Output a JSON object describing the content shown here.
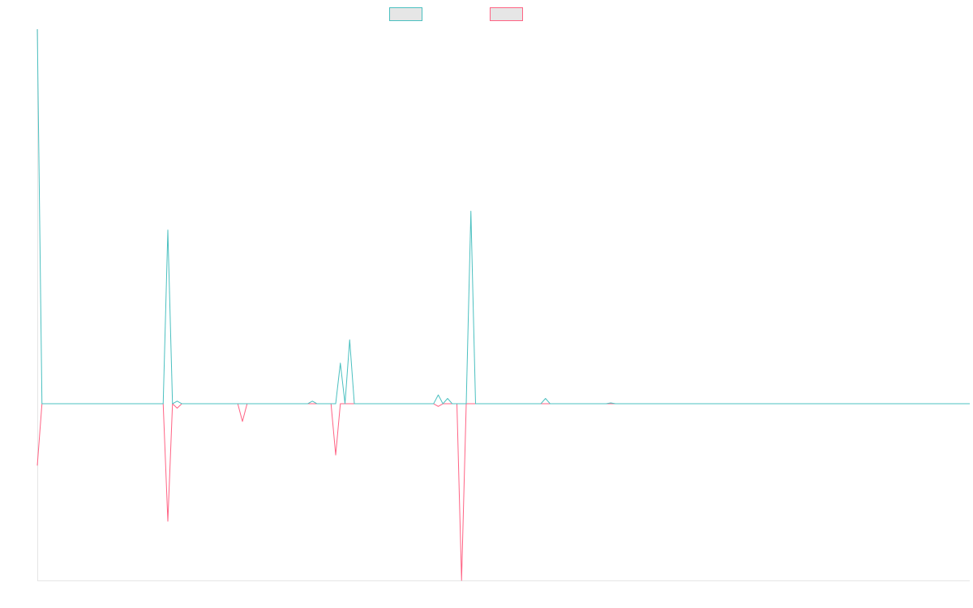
{
  "chart_data": {
    "type": "line",
    "title": "",
    "xlabel": "",
    "ylabel": "",
    "legend_position": "top-center",
    "grid": false,
    "x": [
      0,
      1,
      2,
      3,
      4,
      5,
      6,
      7,
      8,
      9,
      10,
      11,
      12,
      13,
      14,
      15,
      16,
      17,
      18,
      19,
      20,
      21,
      22,
      23,
      24,
      25,
      26,
      27,
      28,
      29,
      30,
      31,
      32,
      33,
      34,
      35,
      36,
      37,
      38,
      39,
      40,
      41,
      42,
      43,
      44,
      45,
      46,
      47,
      48,
      49,
      50,
      51,
      52,
      53,
      54,
      55,
      56,
      57,
      58,
      59,
      60,
      61,
      62,
      63,
      64,
      65,
      66,
      67,
      68,
      69,
      70,
      71,
      72,
      73,
      74,
      75,
      76,
      77,
      78,
      79,
      80,
      81,
      82,
      83,
      84,
      85,
      86,
      87,
      88,
      89,
      90,
      91,
      92,
      93,
      94,
      95,
      96,
      97,
      98,
      99,
      100,
      101,
      102,
      103,
      104,
      105,
      106,
      107,
      108,
      109,
      110,
      111,
      112,
      113,
      114,
      115,
      116,
      117,
      118,
      119,
      120,
      121,
      122,
      123,
      124,
      125,
      126,
      127,
      128,
      129,
      130,
      131,
      132,
      133,
      134,
      135,
      136,
      137,
      138,
      139,
      140,
      141,
      142,
      143,
      144,
      145,
      146,
      147,
      148,
      149,
      150,
      151,
      152,
      153,
      154,
      155,
      156,
      157,
      158,
      159,
      160,
      161,
      162,
      163,
      164,
      165,
      166,
      167,
      168,
      169,
      170,
      171,
      172,
      173,
      174,
      175,
      176,
      177,
      178,
      179,
      180,
      181,
      182,
      183,
      184,
      185,
      186,
      187,
      188,
      189,
      190,
      191,
      192,
      193,
      194,
      195,
      196,
      197,
      198,
      199,
      200
    ],
    "ylim": [
      -1000,
      2120
    ],
    "series": [
      {
        "name": "",
        "color": "#4bc0c0",
        "values": [
          2120,
          0,
          0,
          0,
          0,
          0,
          0,
          0,
          0,
          0,
          0,
          0,
          0,
          0,
          0,
          0,
          0,
          0,
          0,
          0,
          0,
          0,
          0,
          0,
          0,
          0,
          0,
          0,
          983,
          0,
          15,
          0,
          0,
          0,
          0,
          0,
          0,
          0,
          0,
          0,
          0,
          0,
          0,
          0,
          0,
          0,
          0,
          0,
          0,
          0,
          0,
          0,
          0,
          0,
          0,
          0,
          0,
          0,
          0,
          15,
          0,
          0,
          0,
          0,
          0,
          230,
          0,
          362,
          0,
          0,
          0,
          0,
          0,
          0,
          0,
          0,
          0,
          0,
          0,
          0,
          0,
          0,
          0,
          0,
          0,
          0,
          50,
          0,
          30,
          0,
          0,
          0,
          0,
          1090,
          0,
          0,
          0,
          0,
          0,
          0,
          0,
          0,
          0,
          0,
          0,
          0,
          0,
          0,
          0,
          30,
          0,
          0,
          0,
          0,
          0,
          0,
          0,
          0,
          0,
          0,
          0,
          0,
          0,
          5,
          0,
          0,
          0,
          0,
          0,
          0,
          0,
          0,
          0,
          0,
          0,
          0,
          0,
          0,
          0,
          0,
          0,
          0,
          0,
          0,
          0,
          0,
          0,
          0,
          0,
          0,
          0,
          0,
          0,
          0,
          0,
          0,
          0,
          0,
          0,
          0,
          0,
          0,
          0,
          0,
          0,
          0,
          0,
          0,
          0,
          0,
          0,
          0,
          0,
          0,
          0,
          0,
          0,
          0,
          0,
          0,
          0,
          0,
          0,
          0,
          0,
          0,
          0,
          0,
          0,
          0,
          0,
          0,
          0,
          0,
          0,
          0,
          0,
          0,
          0,
          0,
          0
        ]
      },
      {
        "name": "",
        "color": "#ff6384",
        "values": [
          -350,
          0,
          0,
          0,
          0,
          0,
          0,
          0,
          0,
          0,
          0,
          0,
          0,
          0,
          0,
          0,
          0,
          0,
          0,
          0,
          0,
          0,
          0,
          0,
          0,
          0,
          0,
          0,
          -665,
          0,
          -25,
          0,
          0,
          0,
          0,
          0,
          0,
          0,
          0,
          0,
          0,
          0,
          0,
          0,
          -100,
          0,
          0,
          0,
          0,
          0,
          0,
          0,
          0,
          0,
          0,
          0,
          0,
          0,
          0,
          0,
          0,
          0,
          0,
          0,
          -290,
          0,
          0,
          0,
          0,
          0,
          0,
          0,
          0,
          0,
          0,
          0,
          0,
          0,
          0,
          0,
          0,
          0,
          0,
          0,
          0,
          0,
          -15,
          0,
          0,
          0,
          0,
          -1000,
          0,
          0,
          0,
          0,
          0,
          0,
          0,
          0,
          0,
          0,
          0,
          0,
          0,
          0,
          0,
          0,
          0,
          0,
          0,
          0,
          0,
          0,
          0,
          0,
          0,
          0,
          0,
          0,
          0,
          0,
          0,
          0,
          0,
          0,
          0,
          0,
          0,
          0,
          0,
          0,
          0,
          0,
          0,
          0,
          0,
          0,
          0,
          0,
          0,
          0,
          0,
          0,
          0,
          0,
          0,
          0,
          0,
          0,
          0,
          0,
          0,
          0,
          0,
          0,
          0,
          0,
          0,
          0,
          0,
          0,
          0,
          0,
          0,
          0,
          0,
          0,
          0,
          0,
          0,
          0,
          0,
          0,
          0,
          0,
          0,
          0,
          0,
          0,
          0,
          0,
          0,
          0,
          0,
          0,
          0,
          0,
          0,
          0,
          0,
          0,
          0,
          0,
          0,
          0,
          0,
          0,
          0,
          0,
          0
        ]
      }
    ]
  }
}
